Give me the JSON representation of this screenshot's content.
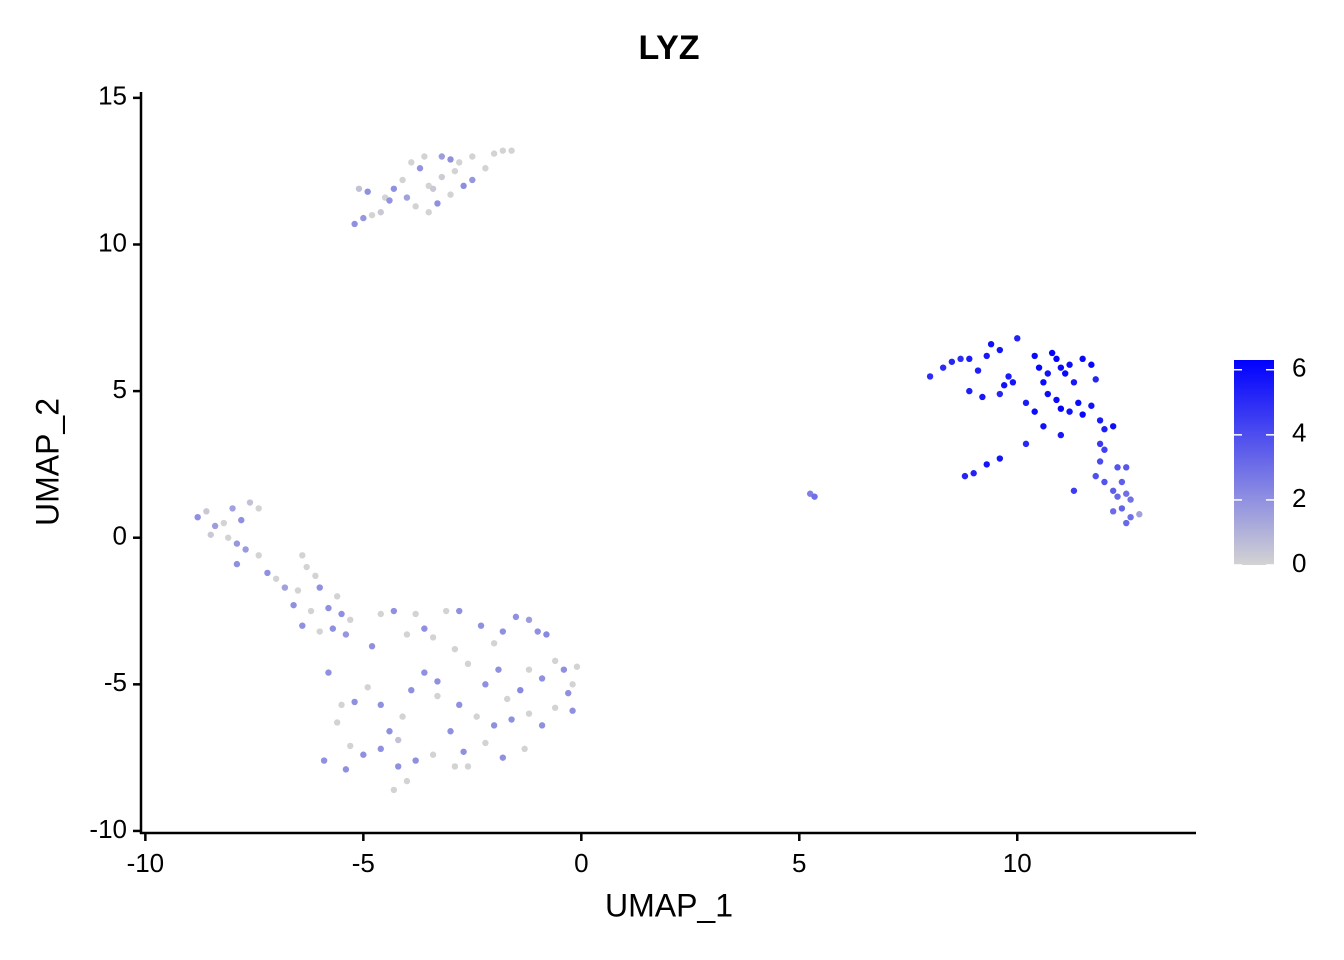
{
  "chart_data": {
    "type": "scatter",
    "title": "LYZ",
    "xlabel": "UMAP_1",
    "ylabel": "UMAP_2",
    "xlim": [
      -10.1,
      14.1
    ],
    "xticks": [
      -10,
      -5,
      0,
      5,
      10
    ],
    "ylim": [
      -10.07,
      15.2
    ],
    "yticks": [
      -10,
      -5,
      0,
      5,
      10,
      15
    ],
    "color_low": "#d3d3d3",
    "color_high": "#0000ff",
    "colorbar_lim": [
      0,
      6.3
    ],
    "colorbar_ticks": [
      0,
      2,
      4,
      6
    ],
    "x": [
      -5.2,
      -5.0,
      -4.8,
      -4.6,
      -4.9,
      -4.5,
      -4.3,
      -4.1,
      -3.9,
      -3.7,
      -3.8,
      -3.5,
      -3.3,
      -3.5,
      -3.2,
      -3.0,
      -2.9,
      -2.7,
      -2.5,
      -2.5,
      -2.2,
      -2.0,
      -1.8,
      -1.6,
      -3.6,
      -3.2,
      -4.4,
      -3.0,
      -2.8,
      -5.1,
      -4.0,
      -3.4,
      8.0,
      8.3,
      8.5,
      8.7,
      8.9,
      9.1,
      9.3,
      9.4,
      9.6,
      9.7,
      9.8,
      9.9,
      10.0,
      10.4,
      10.5,
      10.6,
      10.7,
      10.8,
      10.9,
      11.0,
      11.1,
      11.2,
      11.5,
      11.7,
      11.3,
      11.8,
      10.2,
      10.4,
      10.7,
      10.9,
      11.0,
      11.2,
      11.4,
      11.5,
      11.7,
      11.9,
      12.0,
      12.2,
      10.6,
      11.0,
      9.2,
      9.6,
      8.9,
      10.2,
      9.6,
      9.3,
      9.0,
      8.8,
      11.9,
      12.0,
      11.9,
      12.3,
      12.5,
      11.8,
      12.2,
      12.3,
      12.5,
      12.6,
      12.4,
      12.6,
      12.5,
      12.8,
      12.2,
      11.3,
      12.0,
      12.4,
      5.25,
      5.35,
      -8.8,
      -8.6,
      -8.4,
      -8.2,
      -8.0,
      -7.8,
      -7.6,
      -7.4,
      -8.5,
      -8.1,
      -7.9,
      -7.7,
      -7.9,
      -7.4,
      -7.2,
      -7.0,
      -6.8,
      -6.6,
      -6.5,
      -6.4,
      -6.3,
      -6.1,
      -6.0,
      -6.2,
      -6.4,
      -6.0,
      -5.8,
      -5.6,
      -5.7,
      -5.4,
      -5.3,
      -5.5,
      -4.8,
      -4.6,
      -4.3,
      -4.0,
      -3.8,
      -3.6,
      -3.4,
      -3.1,
      -2.8,
      -2.6,
      -2.9,
      -2.3,
      -2.0,
      -1.8,
      -1.5,
      -1.2,
      -1.0,
      -0.8,
      -0.6,
      -0.4,
      -0.1,
      -0.2,
      -0.3,
      -0.2,
      -0.6,
      -0.9,
      -1.2,
      -1.4,
      -1.7,
      -1.9,
      -2.2,
      -2.4,
      -2.0,
      -1.6,
      -1.2,
      -0.9,
      -1.3,
      -1.8,
      -2.2,
      -2.7,
      -3.0,
      -3.3,
      -3.6,
      -3.9,
      -4.1,
      -4.4,
      -4.6,
      -4.9,
      -5.2,
      -5.5,
      -5.8,
      -5.6,
      -5.3,
      -5.0,
      -4.6,
      -4.2,
      -4.0,
      -4.3,
      -3.8,
      -3.4,
      -2.9,
      -2.6,
      -5.9,
      -5.4,
      -4.2,
      -3.3,
      -2.8
    ],
    "y": [
      10.7,
      10.9,
      11.0,
      11.1,
      11.8,
      11.6,
      11.9,
      12.2,
      12.8,
      12.6,
      11.3,
      11.1,
      11.4,
      12.0,
      12.3,
      12.9,
      12.5,
      12.0,
      12.2,
      13.0,
      12.6,
      13.1,
      13.2,
      13.2,
      13.0,
      13.0,
      11.5,
      11.7,
      12.8,
      11.9,
      11.6,
      11.9,
      5.5,
      5.8,
      6.0,
      6.1,
      6.1,
      5.7,
      6.2,
      6.6,
      6.4,
      5.2,
      5.5,
      5.3,
      6.8,
      6.2,
      5.8,
      5.3,
      5.6,
      6.3,
      6.1,
      5.8,
      5.6,
      5.9,
      6.1,
      5.9,
      5.3,
      5.4,
      4.6,
      4.3,
      4.9,
      4.7,
      4.4,
      4.3,
      4.6,
      4.2,
      4.5,
      4.0,
      3.7,
      3.8,
      3.8,
      3.5,
      4.8,
      4.9,
      5.0,
      3.2,
      2.7,
      2.5,
      2.2,
      2.1,
      3.2,
      3.0,
      2.6,
      2.4,
      2.4,
      2.1,
      1.6,
      1.4,
      1.5,
      1.3,
      1.0,
      0.7,
      0.5,
      0.8,
      0.9,
      1.6,
      1.9,
      1.9,
      1.5,
      1.4,
      0.7,
      0.9,
      0.4,
      0.5,
      1.0,
      0.6,
      1.2,
      1.0,
      0.1,
      0.0,
      -0.2,
      -0.4,
      -0.9,
      -0.6,
      -1.2,
      -1.4,
      -1.7,
      -2.3,
      -1.8,
      -0.6,
      -1.0,
      -1.3,
      -1.7,
      -2.5,
      -3.0,
      -3.2,
      -2.4,
      -2.0,
      -3.1,
      -3.3,
      -2.8,
      -2.6,
      -3.7,
      -2.6,
      -2.5,
      -3.3,
      -2.6,
      -3.1,
      -3.4,
      -2.5,
      -2.5,
      -4.3,
      -3.8,
      -3.0,
      -3.6,
      -3.2,
      -2.7,
      -2.8,
      -3.2,
      -3.3,
      -4.2,
      -4.5,
      -4.4,
      -5.0,
      -5.3,
      -5.9,
      -5.8,
      -4.8,
      -4.5,
      -5.2,
      -5.5,
      -4.5,
      -5.0,
      -6.1,
      -6.4,
      -6.2,
      -6.0,
      -6.4,
      -7.2,
      -7.5,
      -7.0,
      -7.3,
      -6.6,
      -5.4,
      -4.6,
      -5.2,
      -6.1,
      -6.6,
      -5.7,
      -5.1,
      -5.6,
      -5.7,
      -4.6,
      -6.3,
      -7.1,
      -7.4,
      -7.2,
      -7.8,
      -8.3,
      -8.6,
      -7.6,
      -7.4,
      -7.8,
      -7.8,
      -7.6,
      -7.9,
      -6.9,
      -4.9,
      -5.7
    ],
    "values": [
      2,
      1.8,
      0,
      0.3,
      2,
      0,
      2,
      0,
      0,
      1.9,
      0,
      0,
      2,
      0,
      0.2,
      2,
      0,
      2.1,
      1.8,
      0,
      0,
      0,
      0,
      0,
      0,
      1.6,
      1.9,
      0,
      0,
      0.5,
      1.5,
      0.3,
      5,
      5,
      5.2,
      5,
      5.5,
      5.4,
      5.6,
      5.8,
      5.7,
      5.8,
      5.5,
      5.7,
      5.3,
      6,
      6.1,
      6,
      5.8,
      6.2,
      6.2,
      6,
      6.1,
      5.9,
      6.1,
      6.1,
      5.6,
      5.2,
      5.5,
      5.9,
      6,
      6,
      6.2,
      5.8,
      6,
      6.1,
      5.8,
      5.5,
      5.4,
      5.9,
      5.8,
      5.6,
      5.6,
      5.2,
      5.4,
      5.1,
      5.7,
      5.7,
      5.3,
      5.2,
      4.6,
      4.4,
      4.1,
      3.8,
      3.7,
      3.9,
      3.5,
      3.2,
      3,
      2.9,
      3.3,
      3,
      3.2,
      1.5,
      3.1,
      4.5,
      3.8,
      3.5,
      2.5,
      3,
      2,
      0.3,
      1.6,
      0,
      1.5,
      2,
      0.5,
      0,
      0.3,
      0,
      1.8,
      1.7,
      2,
      0,
      2,
      0,
      1.5,
      2,
      0,
      0,
      0,
      0,
      2,
      0,
      2,
      0,
      2,
      0,
      2,
      1.8,
      0,
      2,
      2,
      0,
      2,
      0,
      0,
      2,
      0,
      0,
      2,
      0,
      0,
      2,
      0,
      2,
      2,
      1.6,
      2,
      2.2,
      0,
      2,
      0,
      0,
      2,
      2,
      0,
      2,
      0,
      2.2,
      0,
      2,
      2,
      0,
      2,
      2,
      0,
      2,
      0,
      2,
      0,
      2,
      2,
      0,
      2,
      2,
      0,
      2,
      2,
      0,
      2,
      0,
      2,
      0,
      0,
      2,
      2,
      2,
      0,
      0,
      2,
      0,
      0,
      0,
      2,
      2,
      0.5,
      2,
      2
    ]
  }
}
